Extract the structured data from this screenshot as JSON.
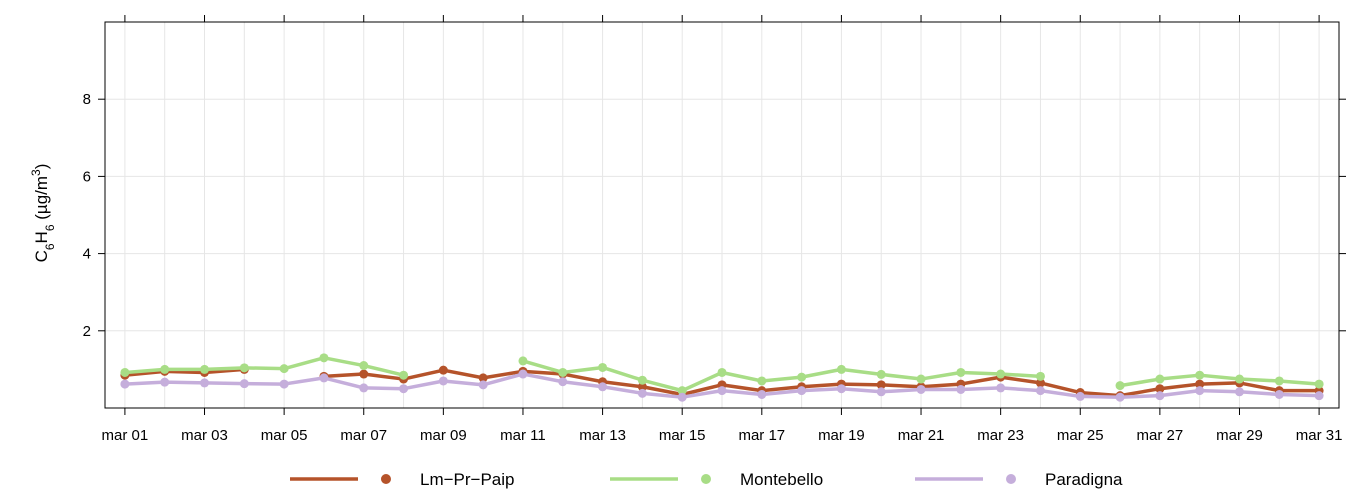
{
  "chart_data": {
    "type": "line",
    "ylabel": {
      "parts": [
        "C",
        "6",
        "H",
        "6",
        " (µg/m",
        "3",
        ")"
      ]
    },
    "xlim": [
      0.5,
      31.5
    ],
    "ylim": [
      0,
      10
    ],
    "x_ticks": [
      {
        "day": 1,
        "label": "mar 01"
      },
      {
        "day": 3,
        "label": "mar 03"
      },
      {
        "day": 5,
        "label": "mar 05"
      },
      {
        "day": 7,
        "label": "mar 07"
      },
      {
        "day": 9,
        "label": "mar 09"
      },
      {
        "day": 11,
        "label": "mar 11"
      },
      {
        "day": 13,
        "label": "mar 13"
      },
      {
        "day": 15,
        "label": "mar 15"
      },
      {
        "day": 17,
        "label": "mar 17"
      },
      {
        "day": 19,
        "label": "mar 19"
      },
      {
        "day": 21,
        "label": "mar 21"
      },
      {
        "day": 23,
        "label": "mar 23"
      },
      {
        "day": 25,
        "label": "mar 25"
      },
      {
        "day": 27,
        "label": "mar 27"
      },
      {
        "day": 29,
        "label": "mar 29"
      },
      {
        "day": 31,
        "label": "mar 31"
      }
    ],
    "y_ticks": [
      2,
      4,
      6,
      8
    ],
    "grid": true,
    "legend": "bottom",
    "x": [
      1,
      2,
      3,
      4,
      5,
      6,
      7,
      8,
      9,
      10,
      11,
      12,
      13,
      14,
      15,
      16,
      17,
      18,
      19,
      20,
      21,
      22,
      23,
      24,
      25,
      26,
      27,
      28,
      29,
      30,
      31
    ],
    "series": [
      {
        "name": "Lm−Pr−Paip",
        "color": "#b5532a",
        "values": [
          0.85,
          0.95,
          0.92,
          1.0,
          null,
          0.82,
          0.88,
          0.75,
          0.98,
          0.78,
          0.95,
          0.88,
          0.68,
          0.55,
          0.35,
          0.6,
          0.45,
          0.55,
          0.62,
          0.6,
          0.55,
          0.62,
          0.8,
          0.65,
          0.4,
          0.32,
          0.5,
          0.62,
          0.65,
          0.45,
          0.45
        ]
      },
      {
        "name": "Montebello",
        "color": "#a8dd86",
        "values": [
          0.92,
          1.0,
          1.0,
          1.04,
          1.02,
          1.3,
          1.1,
          0.85,
          null,
          null,
          1.22,
          0.92,
          1.05,
          0.72,
          0.45,
          0.92,
          0.7,
          0.8,
          1.0,
          0.87,
          0.75,
          0.92,
          0.88,
          0.82,
          null,
          0.58,
          0.75,
          0.85,
          0.75,
          0.7,
          0.62
        ]
      },
      {
        "name": "Paradigna",
        "color": "#c5aedb",
        "values": [
          0.62,
          0.67,
          0.65,
          0.63,
          0.62,
          0.78,
          0.52,
          0.5,
          0.7,
          0.6,
          0.88,
          0.68,
          0.55,
          0.38,
          0.28,
          0.45,
          0.35,
          0.45,
          0.5,
          0.42,
          0.48,
          0.48,
          0.52,
          0.45,
          0.3,
          0.28,
          0.32,
          0.45,
          0.42,
          0.35,
          0.32
        ]
      }
    ]
  }
}
